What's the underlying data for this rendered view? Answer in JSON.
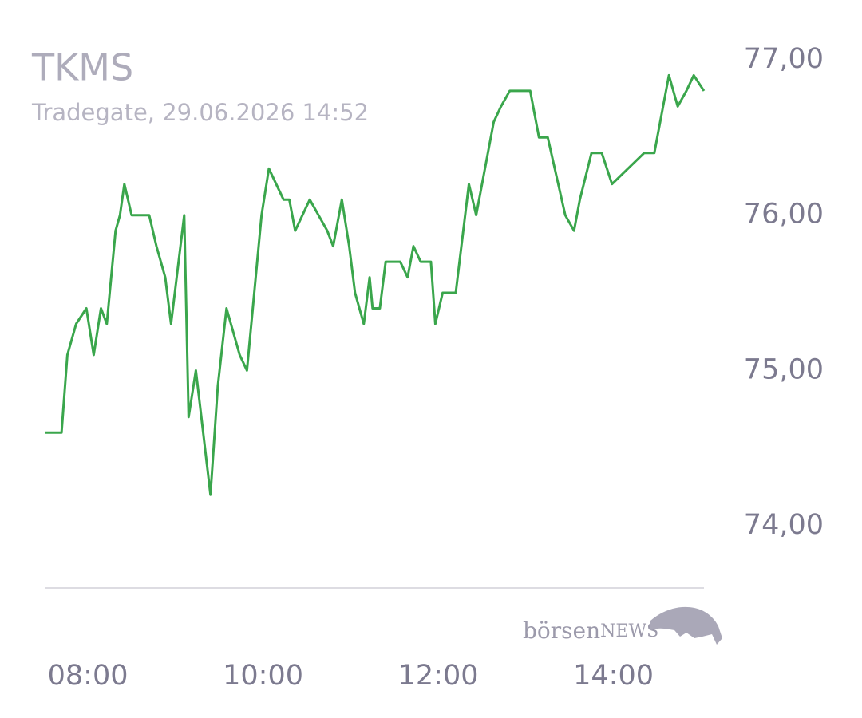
{
  "chart_data": {
    "type": "line",
    "title": "TKMS",
    "subtitle": "Tradegate, 29.06.2026 14:52",
    "watermark": [
      "börsen",
      "NEWS"
    ],
    "x": [
      "07:31",
      "07:42",
      "07:46",
      "07:52",
      "07:59",
      "08:04",
      "08:09",
      "08:13",
      "08:19",
      "08:22",
      "08:25",
      "08:30",
      "08:42",
      "08:47",
      "08:53",
      "08:57",
      "09:06",
      "09:09",
      "09:14",
      "09:24",
      "09:29",
      "09:35",
      "09:44",
      "09:49",
      "09:59",
      "10:04",
      "10:14",
      "10:18",
      "10:22",
      "10:32",
      "10:44",
      "10:48",
      "10:54",
      "10:59",
      "11:03",
      "11:09",
      "11:13",
      "11:15",
      "11:20",
      "11:24",
      "11:34",
      "11:39",
      "11:43",
      "11:48",
      "11:55",
      "11:58",
      "12:03",
      "12:12",
      "12:21",
      "12:26",
      "12:38",
      "12:43",
      "12:49",
      "13:03",
      "13:09",
      "13:15",
      "13:27",
      "13:33",
      "13:37",
      "13:45",
      "13:52",
      "13:59",
      "14:21",
      "14:28",
      "14:38",
      "14:44",
      "14:50",
      "14:55",
      "15:02"
    ],
    "series": [
      {
        "name": "TKMS",
        "color": "#3aa64c",
        "values": [
          74.6,
          74.6,
          75.1,
          75.3,
          75.4,
          75.1,
          75.4,
          75.3,
          75.9,
          76.0,
          76.2,
          76.0,
          76.0,
          75.8,
          75.6,
          75.3,
          76.0,
          74.7,
          75.0,
          74.2,
          74.9,
          75.4,
          75.1,
          75.0,
          76.0,
          76.3,
          76.1,
          76.1,
          75.9,
          76.1,
          75.9,
          75.8,
          76.1,
          75.8,
          75.5,
          75.3,
          75.6,
          75.4,
          75.4,
          75.7,
          75.7,
          75.6,
          75.8,
          75.7,
          75.7,
          75.3,
          75.5,
          75.5,
          76.2,
          76.0,
          76.6,
          76.7,
          76.8,
          76.8,
          76.5,
          76.5,
          76.0,
          75.9,
          76.1,
          76.4,
          76.4,
          76.2,
          76.4,
          76.4,
          76.9,
          76.7,
          76.8,
          76.9,
          76.8
        ]
      }
    ],
    "xlim": [
      "07:31",
      "15:02"
    ],
    "xticks": [
      "08:00",
      "10:00",
      "12:00",
      "14:00"
    ],
    "ylim": [
      73.6,
      77.1
    ],
    "yticks": [
      {
        "value": 74,
        "label": "74,00"
      },
      {
        "value": 75,
        "label": "75,00"
      },
      {
        "value": 76,
        "label": "76,00"
      },
      {
        "value": 77,
        "label": "77,00"
      }
    ],
    "grid": false
  }
}
